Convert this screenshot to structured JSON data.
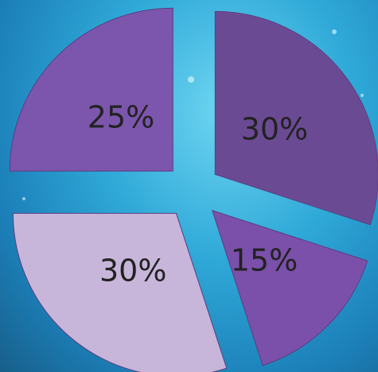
{
  "chart_data": {
    "type": "pie",
    "values": [
      30,
      15,
      30,
      25
    ],
    "value_labels": [
      "30%",
      "15%",
      "30%",
      "25%"
    ],
    "colors": [
      "#6b4a94",
      "#7a50aa",
      "#c8b6da",
      "#7c55ad"
    ],
    "exploded": true
  }
}
